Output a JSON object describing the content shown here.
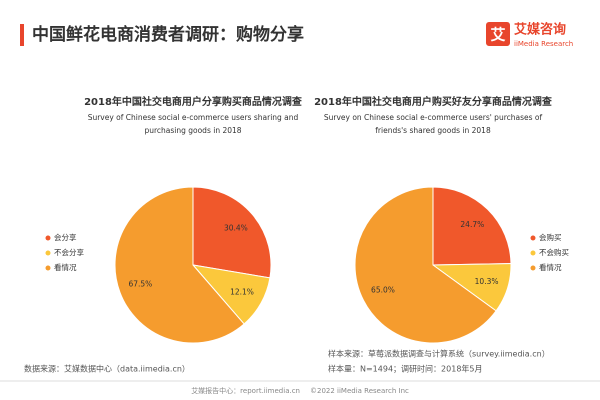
{
  "header": {
    "title": "中国鲜花电商消费者调研：购物分享",
    "logo_mark": "艾",
    "logo_name": "艾媒咨询",
    "logo_sub": "iiMedia Research"
  },
  "chart_data": [
    {
      "type": "pie",
      "title": "2018年中国社交电商用户分享购买商品情况调查",
      "subtitle": "Survey of Chinese social e-commerce users sharing and purchasing goods in 2018",
      "categories": [
        "会分享",
        "不会分享",
        "看情况"
      ],
      "values": [
        30.4,
        12.1,
        67.5
      ],
      "value_labels": [
        "30.4%",
        "12.1%",
        "67.5%"
      ],
      "colors": [
        "#f0582b",
        "#fbc83c",
        "#f59c2e"
      ],
      "legend": "left"
    },
    {
      "type": "pie",
      "title": "2018年中国社交电商用户购买好友分享商品情况调查",
      "subtitle": "Survey on Chinese social e-commerce users' purchases of friends's shared goods in 2018",
      "categories": [
        "会购买",
        "不会购买",
        "看情况"
      ],
      "values": [
        24.7,
        10.3,
        65.0
      ],
      "value_labels": [
        "24.7%",
        "10.3%",
        "65.0%"
      ],
      "colors": [
        "#f0582b",
        "#fbc83c",
        "#f59c2e"
      ],
      "legend": "right"
    }
  ],
  "footer": {
    "source_left": "数据来源：艾媒数据中心（data.iimedia.cn）",
    "sample_source": "样本来源：草莓派数据调查与计算系统（survey.iimedia.cn）",
    "sample_size": "样本量：N=1494；调研时间：2018年5月",
    "report_center": "艾媒报告中心：report.iimedia.cn",
    "copyright": "©2022 iiMedia Research Inc"
  }
}
